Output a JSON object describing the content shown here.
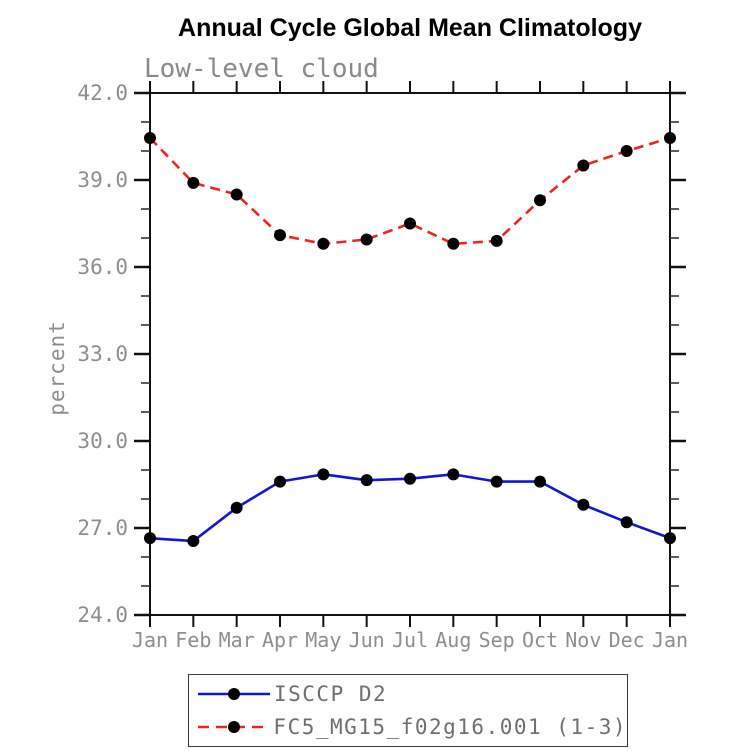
{
  "title": "Annual Cycle Global Mean Climatology",
  "chart_data": {
    "type": "line",
    "title": "Annual Cycle Global Mean Climatology",
    "subtitle": "Low-level cloud",
    "ylabel": "percent",
    "xlabel": "",
    "x_categories": [
      "Jan",
      "Feb",
      "Mar",
      "Apr",
      "May",
      "Jun",
      "Jul",
      "Aug",
      "Sep",
      "Oct",
      "Nov",
      "Dec",
      "Jan"
    ],
    "ylim": [
      24.0,
      42.0
    ],
    "ytick_values": [
      24,
      27,
      30,
      33,
      36,
      39,
      42
    ],
    "ytick_labels": [
      "24.0",
      "27.0",
      "30.0",
      "33.0",
      "36.0",
      "39.0",
      "42.0"
    ],
    "ytick_minor_values": [
      25,
      26,
      28,
      29,
      31,
      32,
      34,
      35,
      37,
      38,
      40,
      41
    ],
    "grid": false,
    "legend_position": "bottom-center",
    "series": [
      {
        "name": "ISCCP D2",
        "line_style": "solid",
        "line_color": "#1515d2",
        "marker": "filled-circle",
        "marker_color": "#000000",
        "values": [
          26.65,
          26.55,
          27.7,
          28.6,
          28.85,
          28.65,
          28.7,
          28.85,
          28.6,
          28.6,
          27.8,
          27.2,
          26.65
        ]
      },
      {
        "name": "FC5_MG15_f02g16.001 (1-3)",
        "line_style": "dashed",
        "line_color": "#ee2424",
        "marker": "filled-circle",
        "marker_color": "#000000",
        "values": [
          40.45,
          38.9,
          38.5,
          37.1,
          36.8,
          36.95,
          37.5,
          36.8,
          36.9,
          38.3,
          39.5,
          40.0,
          40.45
        ]
      }
    ]
  },
  "palette": {
    "background": "#ffffff",
    "title_color": "#000000",
    "subtitle_color": "#8a8a8a",
    "tick_label_color": "#8e8e8e",
    "axis_color": "#111111",
    "minor_tick_color": "#333333",
    "legend_text_color": "#6f6f6f",
    "legend_border_color": "#3a3a3a"
  }
}
